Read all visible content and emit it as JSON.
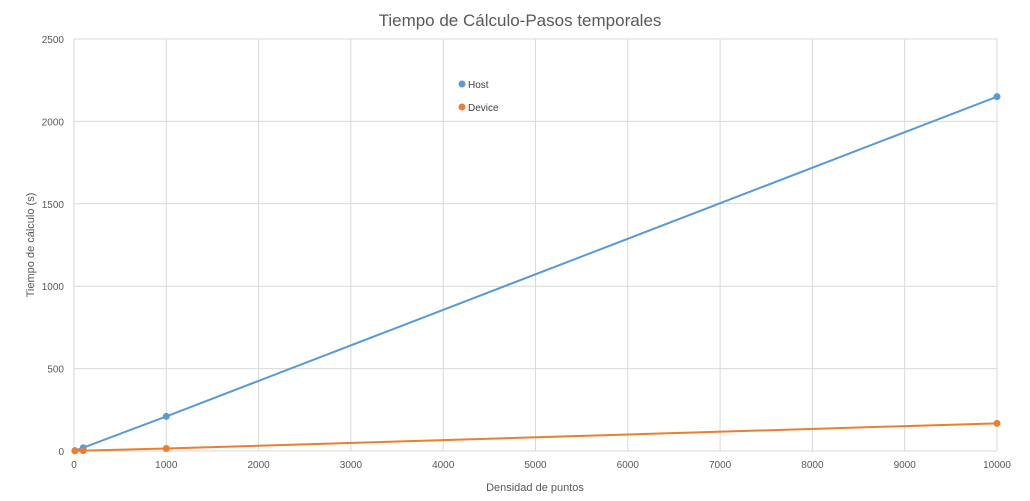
{
  "chart_data": {
    "type": "scatter",
    "title": "Tiempo de Cálculo-Pasos temporales",
    "xlabel": "Densidad de puntos",
    "ylabel": "Tiempo de cálculo (s)",
    "xlim": [
      0,
      10000
    ],
    "ylim": [
      0,
      2500
    ],
    "xticks": [
      "0",
      "1000",
      "2000",
      "3000",
      "4000",
      "5000",
      "6000",
      "7000",
      "8000",
      "9000",
      "10000"
    ],
    "yticks": [
      "0",
      "500",
      "1000",
      "1500",
      "2000",
      "2500"
    ],
    "grid": true,
    "legend_position": "top-center",
    "series": [
      {
        "name": "Host",
        "color": "#5b9bd5",
        "points": [
          {
            "x": 10,
            "y": 2
          },
          {
            "x": 100,
            "y": 20
          },
          {
            "x": 1000,
            "y": 210
          },
          {
            "x": 10000,
            "y": 2150
          }
        ]
      },
      {
        "name": "Device",
        "color": "#ed7d31",
        "points": [
          {
            "x": 10,
            "y": 1
          },
          {
            "x": 100,
            "y": 2
          },
          {
            "x": 1000,
            "y": 15
          },
          {
            "x": 10000,
            "y": 168
          }
        ]
      }
    ]
  }
}
